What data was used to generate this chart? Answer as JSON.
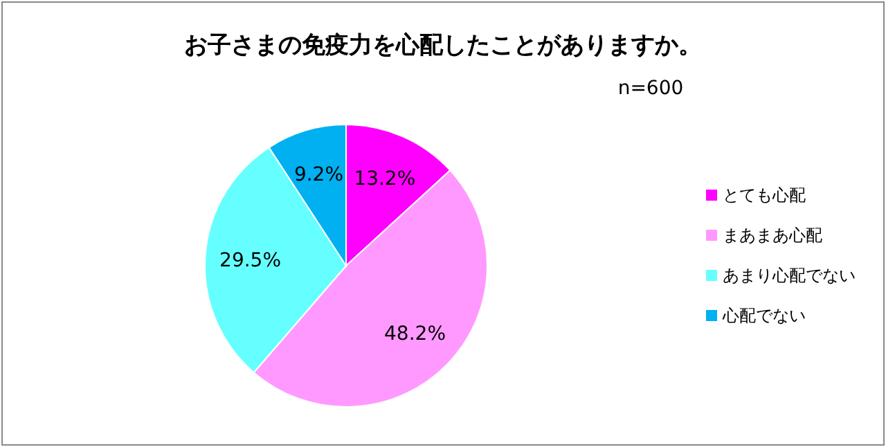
{
  "chart_data": {
    "type": "pie",
    "title": "お子さまの免疫力を心配したことがありますか。",
    "annotations": [
      "n=600"
    ],
    "categories": [
      "とても心配",
      "まあまあ心配",
      "あまり心配でない",
      "心配でない"
    ],
    "values": [
      13.2,
      48.2,
      29.5,
      9.2
    ],
    "colors": [
      "#ff00ff",
      "#ff99ff",
      "#66ffff",
      "#00b0f0"
    ],
    "value_labels": [
      "13.2%",
      "48.2%",
      "29.5%",
      "9.2%"
    ],
    "legend": "right"
  }
}
